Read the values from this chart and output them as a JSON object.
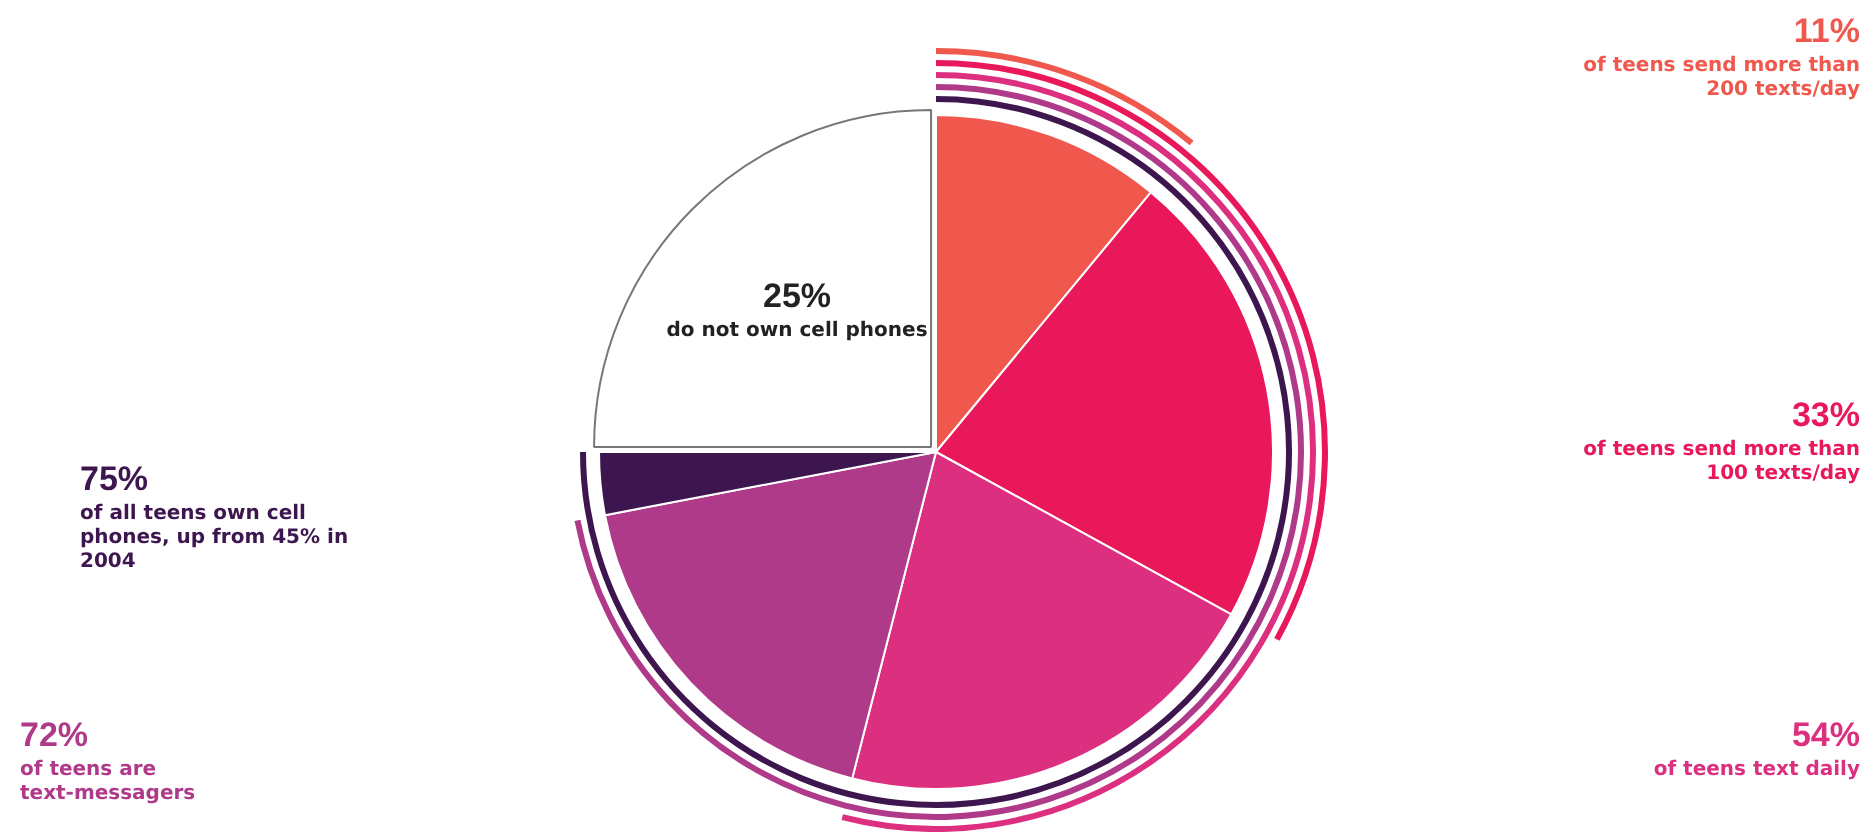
{
  "chart_data": {
    "type": "pie",
    "categories": [
      null,
      null,
      null,
      null,
      null,
      null
    ],
    "values": [
      11,
      22,
      21,
      18,
      3,
      25
    ],
    "colors": [
      "#f0584e",
      "#e8185a",
      "#dc2f7f",
      "#b03a8a",
      "#3d1650",
      "#ffffff"
    ],
    "annotations": [
      "11% of teens send more than 200 texts/day",
      "33% of teens send more than 100 texts/day",
      "54% of teens text daily",
      "72% of teens are text-messagers",
      "75% of all teens own cell phones, up from 45% in 2004",
      "25% do not own cell phones"
    ],
    "legend": false
  }
}
